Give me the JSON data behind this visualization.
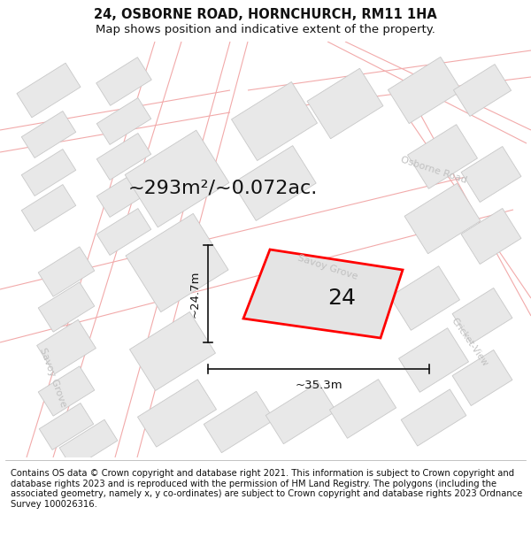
{
  "title": "24, OSBORNE ROAD, HORNCHURCH, RM11 1HA",
  "subtitle": "Map shows position and indicative extent of the property.",
  "area_text": "~293m²/~0.072ac.",
  "label_24": "24",
  "dim_height": "~24.7m",
  "dim_width": "~35.3m",
  "footer": "Contains OS data © Crown copyright and database right 2021. This information is subject to Crown copyright and database rights 2023 and is reproduced with the permission of HM Land Registry. The polygons (including the associated geometry, namely x, y co-ordinates) are subject to Crown copyright and database rights 2023 Ordnance Survey 100026316.",
  "bg_color": "#ffffff",
  "title_fontsize": 10.5,
  "subtitle_fontsize": 9.5,
  "area_fontsize": 16,
  "label_fontsize": 18,
  "footer_fontsize": 7.2,
  "road_color": "#f2aaaa",
  "road_lw": 0.8,
  "building_fill": "#e8e8e8",
  "building_edge": "#c8c8c8",
  "building_lw": 0.6,
  "plot_fill": "#e4e4e4",
  "plot_edge": "#ff0000",
  "plot_edge_width": 2.0,
  "street_label_color": "#c0c0c0",
  "street_label_size": 8,
  "dim_color": "#111111"
}
